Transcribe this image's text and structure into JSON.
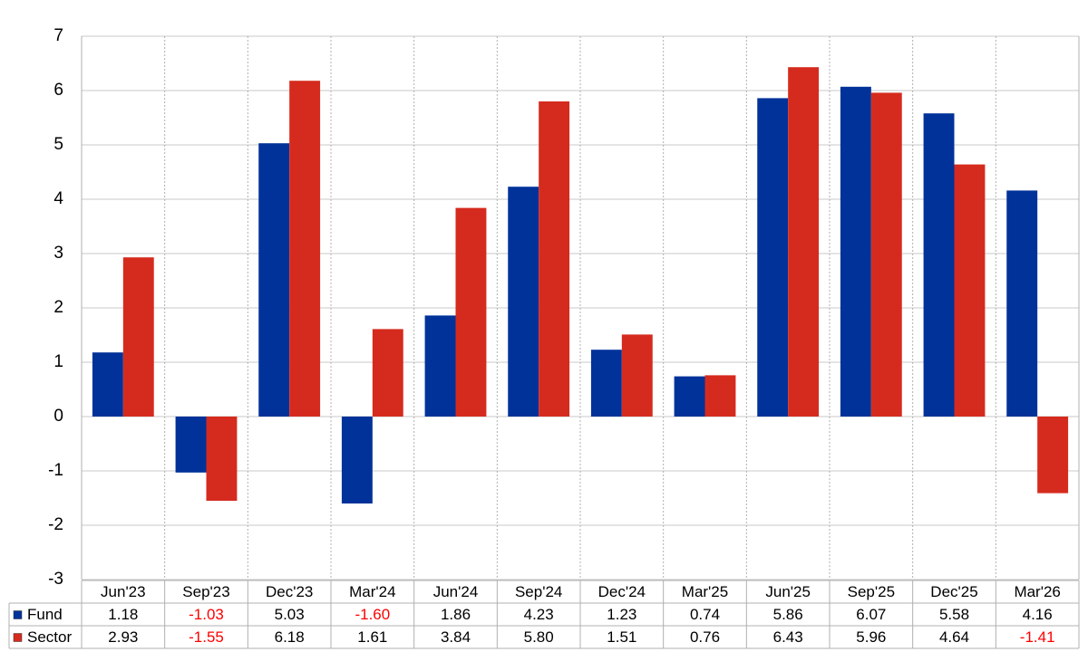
{
  "chart_data": {
    "type": "bar",
    "categories": [
      "Jun'23",
      "Sep'23",
      "Dec'23",
      "Mar'24",
      "Jun'24",
      "Sep'24",
      "Dec'24",
      "Mar'25",
      "Jun'25",
      "Sep'25",
      "Dec'25",
      "Mar'26"
    ],
    "series": [
      {
        "name": "Fund",
        "color": "#003299",
        "values": [
          1.18,
          -1.03,
          5.03,
          -1.6,
          1.86,
          4.23,
          1.23,
          0.74,
          5.86,
          6.07,
          5.58,
          4.16
        ],
        "value_labels": [
          "1.18",
          "-1.03",
          "5.03",
          "-1.60",
          "1.86",
          "4.23",
          "1.23",
          "0.74",
          "5.86",
          "6.07",
          "5.58",
          "4.16"
        ]
      },
      {
        "name": "Sector",
        "color": "#d52b1e",
        "values": [
          2.93,
          -1.55,
          6.18,
          1.61,
          3.84,
          5.8,
          1.51,
          0.76,
          6.43,
          5.96,
          4.64,
          -1.41
        ],
        "value_labels": [
          "2.93",
          "-1.55",
          "6.18",
          "1.61",
          "3.84",
          "5.80",
          "1.51",
          "0.76",
          "6.43",
          "5.96",
          "4.64",
          "-1.41"
        ]
      }
    ],
    "ylim": [
      -3,
      7
    ],
    "yticks": [
      -3,
      -2,
      -1,
      0,
      1,
      2,
      3,
      4,
      5,
      6,
      7
    ],
    "grid": true,
    "negative_color": "#ff0000"
  }
}
